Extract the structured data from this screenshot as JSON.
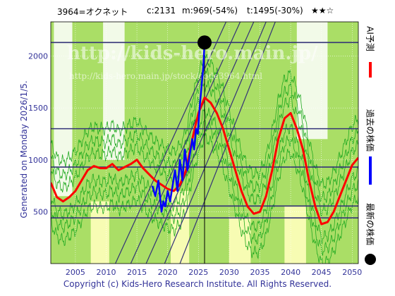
{
  "header": {
    "ticker": "3964=オクネット",
    "current": "c:2131",
    "middle": "m:969(-54%)",
    "target": "t:1495(-30%)",
    "stars": "★★☆"
  },
  "side_label": "Generated on Monday 2026/1/5.",
  "watermark": {
    "line1": "http://kids-hero.main.jp/",
    "line2": "http://kids-hero.main.jp/stock/code3964.html"
  },
  "footer": "Copyright (c) Kids-Hero Research Institute. All Rights Reserved.",
  "legend": [
    {
      "label": "AI予測",
      "color": "#ff0000"
    },
    {
      "label": "過去の株価",
      "color": "#0000ff"
    },
    {
      "label": "最新の株価",
      "color": "#000000"
    }
  ],
  "colors": {
    "plot_bg": "#ffffff",
    "band_green": "#aade66",
    "band_yellow": "#ffffbb",
    "band_lightgreen": "#ccf0aa",
    "thin_green": "#22aa22",
    "hline": "#333377",
    "prediction": "#ff0000",
    "past": "#0000ff",
    "latest": "#000000",
    "axis_text": "#333399"
  },
  "chart_data": {
    "type": "line",
    "title": "",
    "xlabel": "",
    "ylabel": "",
    "xlim": [
      2001,
      2051
    ],
    "ylim": [
      0,
      2330
    ],
    "x_ticks": [
      "2005",
      "2010",
      "2015",
      "2020",
      "2025",
      "2030",
      "2035",
      "2040",
      "2045",
      "2050"
    ],
    "y_ticks": [
      "500",
      "1000",
      "1500",
      "2000"
    ],
    "horizontal_levels": [
      2131,
      1300,
      930,
      555,
      440
    ],
    "latest_point": {
      "x": 2026.0,
      "y": 2131
    },
    "series": [
      {
        "name": "AI予測",
        "x": [
          2001,
          2002,
          2003,
          2004,
          2005,
          2006,
          2007,
          2008,
          2009,
          2010,
          2011,
          2012,
          2013,
          2014,
          2015,
          2016,
          2017,
          2018,
          2019,
          2020,
          2021,
          2022,
          2023,
          2024,
          2025,
          2026,
          2027,
          2028,
          2029,
          2030,
          2031,
          2032,
          2033,
          2034,
          2035,
          2036,
          2037,
          2038,
          2039,
          2040,
          2041,
          2042,
          2043,
          2044,
          2045,
          2046,
          2047,
          2048,
          2049,
          2050,
          2051
        ],
        "values": [
          780,
          640,
          600,
          640,
          700,
          800,
          900,
          940,
          920,
          920,
          960,
          900,
          930,
          960,
          1000,
          920,
          860,
          800,
          760,
          720,
          700,
          760,
          900,
          1200,
          1450,
          1600,
          1550,
          1450,
          1300,
          1100,
          900,
          700,
          550,
          480,
          500,
          650,
          900,
          1200,
          1400,
          1450,
          1300,
          1100,
          800,
          550,
          380,
          400,
          500,
          650,
          800,
          950,
          1020
        ]
      },
      {
        "name": "過去の株価",
        "x": [
          2017.5,
          2018.0,
          2018.5,
          2019.0,
          2019.3,
          2019.6,
          2020.0,
          2020.4,
          2020.8,
          2021.2,
          2021.6,
          2022.0,
          2022.4,
          2022.8,
          2023.2,
          2023.6,
          2024.0,
          2024.3,
          2024.6,
          2024.9,
          2025.2,
          2025.5,
          2025.8,
          2026.0
        ],
        "values": [
          750,
          650,
          800,
          500,
          600,
          550,
          700,
          600,
          750,
          900,
          700,
          1000,
          800,
          1100,
          900,
          1050,
          1200,
          1100,
          1300,
          1250,
          1500,
          1700,
          1900,
          2131
        ]
      }
    ],
    "bands": [
      {
        "from": 2001.5,
        "to": 2004.5,
        "low": 650,
        "high": 2330
      },
      {
        "from": 2009.5,
        "to": 2013.0,
        "low": 1000,
        "high": 2330
      },
      {
        "from": 2041.0,
        "to": 2046.0,
        "low": 1200,
        "high": 2330
      }
    ]
  }
}
